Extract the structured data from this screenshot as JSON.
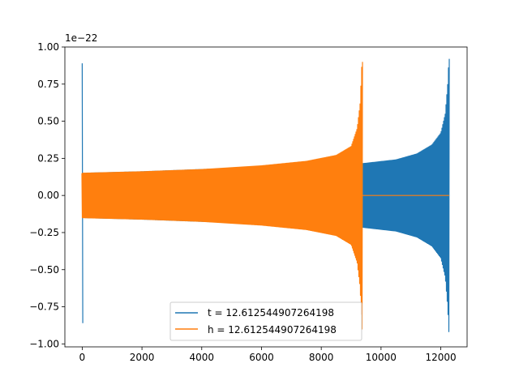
{
  "chart_data": {
    "type": "line",
    "title": "",
    "xlabel": "",
    "ylabel": "",
    "offset_text": "1e−22",
    "xlim": [
      -580,
      12880
    ],
    "ylim": [
      -1.02,
      1.0
    ],
    "xticks": [
      0,
      2000,
      4000,
      6000,
      8000,
      10000,
      12000
    ],
    "xtick_labels": [
      "0",
      "2000",
      "4000",
      "6000",
      "8000",
      "10000",
      "12000"
    ],
    "yticks": [
      -1.0,
      -0.75,
      -0.5,
      -0.25,
      0.0,
      0.25,
      0.5,
      0.75,
      1.0
    ],
    "ytick_labels": [
      "−1.00",
      "−0.75",
      "−0.50",
      "−0.25",
      "0.00",
      "0.25",
      "0.50",
      "0.75",
      "1.00"
    ],
    "grid": false,
    "legend_position": "lower center",
    "series": [
      {
        "name": "t = 12.612544907264198",
        "color": "#1f77b4",
        "x_range": [
          0,
          12280
        ],
        "initial_spike": {
          "x": 0,
          "max": 0.89,
          "min": -0.86
        },
        "envelope": [
          {
            "x": 100,
            "amp": 0.15
          },
          {
            "x": 2000,
            "amp": 0.16
          },
          {
            "x": 4000,
            "amp": 0.175
          },
          {
            "x": 6000,
            "amp": 0.19
          },
          {
            "x": 8000,
            "amp": 0.2
          },
          {
            "x": 9400,
            "amp": 0.215
          },
          {
            "x": 10500,
            "amp": 0.24
          },
          {
            "x": 11200,
            "amp": 0.28
          },
          {
            "x": 11700,
            "amp": 0.34
          },
          {
            "x": 12000,
            "amp": 0.42
          },
          {
            "x": 12150,
            "amp": 0.55
          },
          {
            "x": 12230,
            "amp": 0.75
          },
          {
            "x": 12270,
            "amp": 0.92
          }
        ]
      },
      {
        "name": "h = 12.612544907264198",
        "color": "#ff7f0e",
        "x_range": [
          0,
          12280
        ],
        "envelope": [
          {
            "x": 0,
            "amp": 0.15
          },
          {
            "x": 2000,
            "amp": 0.16
          },
          {
            "x": 4000,
            "amp": 0.175
          },
          {
            "x": 6000,
            "amp": 0.2
          },
          {
            "x": 7500,
            "amp": 0.23
          },
          {
            "x": 8500,
            "amp": 0.27
          },
          {
            "x": 9000,
            "amp": 0.33
          },
          {
            "x": 9200,
            "amp": 0.45
          },
          {
            "x": 9300,
            "amp": 0.62
          },
          {
            "x": 9360,
            "amp": 0.9
          }
        ],
        "tail": {
          "x_start": 9370,
          "x_end": 12280,
          "y": 0.0
        }
      }
    ]
  }
}
